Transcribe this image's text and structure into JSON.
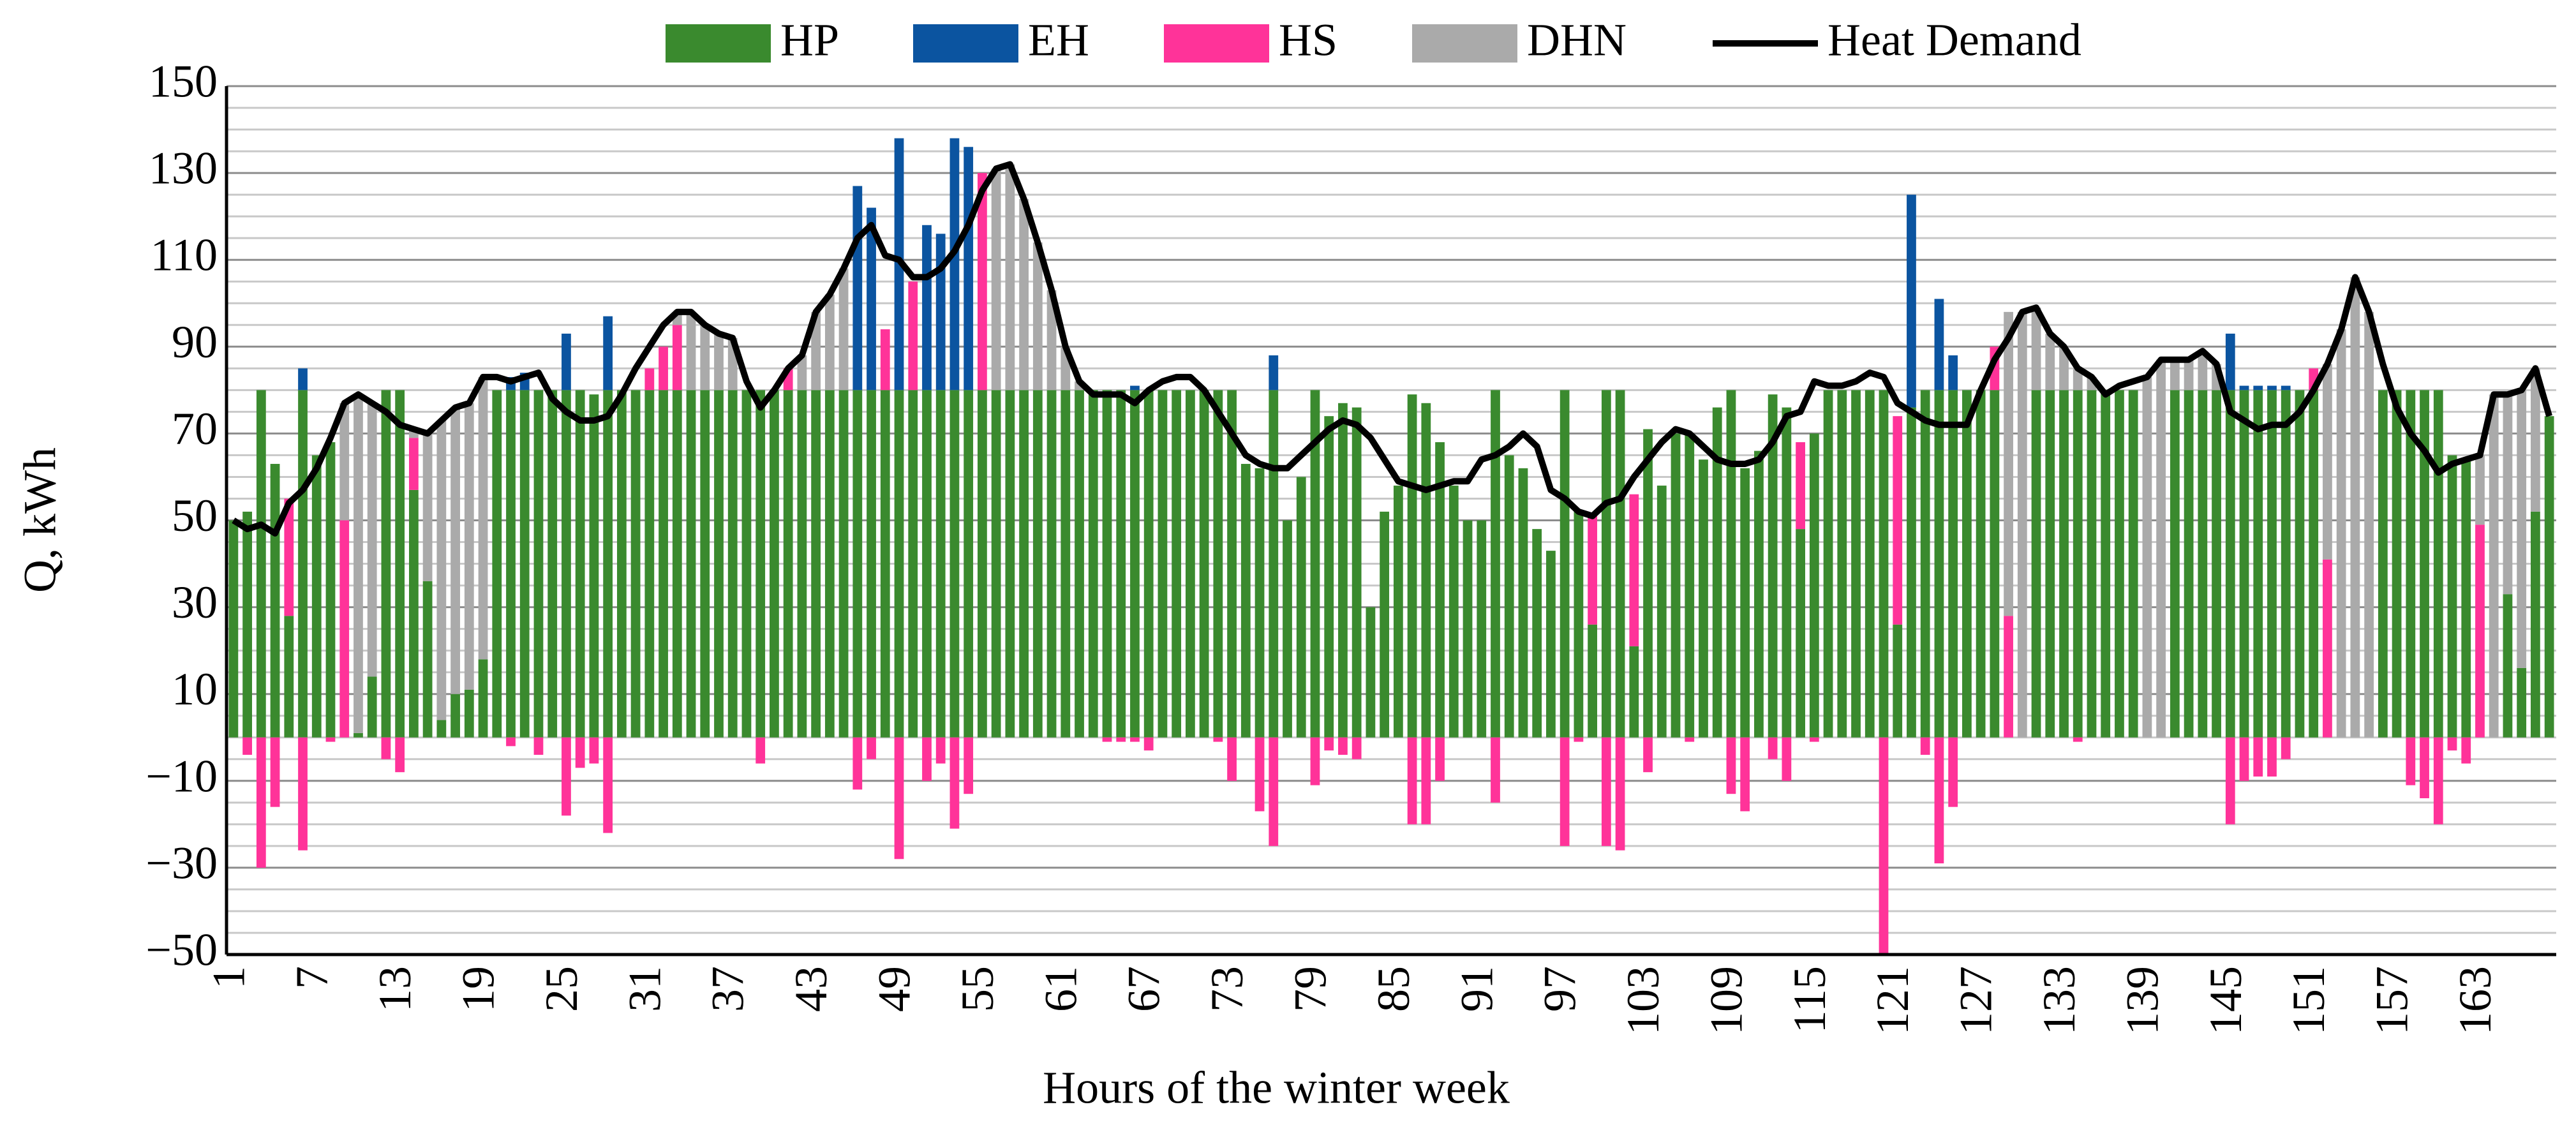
{
  "chart_data": {
    "type": "bar",
    "stacked": true,
    "xlabel": "Hours of the winter week",
    "ylabel": "Q, kWh",
    "legend": "top",
    "grid": true,
    "ylim": [
      -50,
      150
    ],
    "yticks": [
      {
        "value": -50,
        "label": "−50"
      },
      {
        "value": -30,
        "label": "−30"
      },
      {
        "value": -10,
        "label": "−10"
      },
      10,
      30,
      50,
      70,
      90,
      110,
      130,
      150
    ],
    "y_minor_ticks": [
      -45,
      -40,
      -35,
      -25,
      -20,
      -15,
      -5,
      0,
      5,
      15,
      20,
      25,
      35,
      40,
      45,
      55,
      60,
      65,
      75,
      80,
      85,
      95,
      100,
      105,
      115,
      120,
      125,
      135,
      140,
      145
    ],
    "categories": [
      1,
      null,
      null,
      null,
      null,
      null,
      7,
      null,
      null,
      null,
      null,
      null,
      13,
      null,
      null,
      null,
      null,
      null,
      19,
      null,
      null,
      null,
      null,
      null,
      25,
      null,
      null,
      null,
      null,
      null,
      31,
      null,
      null,
      null,
      null,
      null,
      37,
      null,
      null,
      null,
      null,
      null,
      43,
      null,
      null,
      null,
      null,
      null,
      49,
      null,
      null,
      null,
      null,
      null,
      55,
      null,
      null,
      null,
      null,
      null,
      61,
      null,
      null,
      null,
      null,
      null,
      67,
      null,
      null,
      null,
      null,
      null,
      73,
      null,
      null,
      null,
      null,
      null,
      79,
      null,
      null,
      null,
      null,
      null,
      85,
      null,
      null,
      null,
      null,
      null,
      91,
      null,
      null,
      null,
      null,
      null,
      97,
      null,
      null,
      null,
      null,
      null,
      103,
      null,
      null,
      null,
      null,
      null,
      109,
      null,
      null,
      null,
      null,
      null,
      115,
      null,
      null,
      null,
      null,
      null,
      121,
      null,
      null,
      null,
      null,
      null,
      127,
      null,
      null,
      null,
      null,
      null,
      133,
      null,
      null,
      null,
      null,
      null,
      139,
      null,
      null,
      null,
      null,
      null,
      145,
      null,
      null,
      null,
      null,
      null,
      151,
      null,
      null,
      null,
      null,
      null,
      157,
      null,
      null,
      null,
      null,
      null,
      163,
      null,
      null,
      null,
      null,
      null
    ],
    "series": [
      {
        "name": "HP",
        "color": "#3a8a2e",
        "values": [
          50,
          52,
          80,
          63,
          28,
          80,
          65,
          68,
          0,
          1,
          14,
          80,
          80,
          57,
          36,
          4,
          10,
          11,
          18,
          80,
          80,
          80,
          80,
          80,
          80,
          80,
          79,
          80,
          80,
          80,
          80,
          80,
          80,
          80,
          80,
          80,
          80,
          80,
          80,
          80,
          80,
          80,
          80,
          80,
          80,
          80,
          80,
          80,
          80,
          80,
          80,
          80,
          80,
          80,
          80,
          80,
          80,
          80,
          80,
          80,
          80,
          80,
          80,
          80,
          80,
          80,
          80,
          80,
          80,
          80,
          80,
          80,
          80,
          63,
          62,
          80,
          50,
          60,
          80,
          74,
          77,
          76,
          30,
          52,
          58,
          79,
          77,
          68,
          58,
          50,
          50,
          80,
          65,
          62,
          48,
          43,
          80,
          52,
          26,
          80,
          80,
          21,
          71,
          58,
          70,
          70,
          64,
          76,
          80,
          62,
          66,
          79,
          76,
          48,
          70,
          80,
          80,
          80,
          80,
          80,
          26,
          76,
          80,
          80,
          80,
          80,
          80,
          80,
          0,
          0,
          80,
          80,
          80,
          80,
          80,
          80,
          80,
          80,
          0,
          0,
          80,
          80,
          80,
          80,
          80,
          80,
          80,
          80,
          80,
          80,
          80,
          0,
          0,
          0,
          0,
          80,
          80,
          80,
          80,
          80,
          65,
          64,
          0,
          0,
          33,
          16,
          52,
          74
        ]
      },
      {
        "name": "EH",
        "color": "#0b54a0",
        "values": [
          0,
          0,
          0,
          0,
          0,
          5,
          0,
          0,
          0,
          0,
          0,
          0,
          0,
          0,
          0,
          0,
          0,
          0,
          0,
          0,
          3,
          4,
          0,
          0,
          13,
          0,
          0,
          17,
          0,
          0,
          0,
          0,
          0,
          0,
          0,
          0,
          0,
          0,
          0,
          0,
          0,
          0,
          0,
          0,
          0,
          47,
          42,
          0,
          58,
          0,
          38,
          36,
          58,
          56,
          0,
          0,
          0,
          0,
          0,
          0,
          0,
          0,
          0,
          0,
          0,
          1,
          0,
          0,
          0,
          0,
          0,
          0,
          0,
          0,
          0,
          8,
          0,
          0,
          0,
          0,
          0,
          0,
          0,
          0,
          0,
          0,
          0,
          0,
          0,
          0,
          0,
          0,
          0,
          0,
          0,
          0,
          0,
          0,
          0,
          0,
          0,
          0,
          0,
          0,
          0,
          0,
          0,
          0,
          0,
          0,
          0,
          0,
          0,
          0,
          0,
          0,
          0,
          0,
          0,
          0,
          0,
          49,
          0,
          21,
          8,
          0,
          0,
          0,
          0,
          0,
          0,
          0,
          0,
          0,
          0,
          0,
          0,
          0,
          0,
          0,
          0,
          0,
          0,
          0,
          13,
          1,
          1,
          1,
          1,
          0,
          0,
          0,
          0,
          0,
          0,
          0,
          0,
          0,
          0,
          0,
          0,
          0,
          0,
          0,
          0,
          0,
          0,
          0
        ]
      },
      {
        "name": "HS",
        "color": "#ff3399",
        "values": [
          0,
          -4,
          -30,
          -16,
          27,
          -26,
          0,
          -1,
          50,
          0,
          0,
          -5,
          -8,
          12,
          0,
          0,
          0,
          0,
          0,
          0,
          -2,
          0,
          -4,
          0,
          -18,
          -7,
          -6,
          -22,
          0,
          0,
          5,
          10,
          15,
          0,
          0,
          0,
          0,
          0,
          -6,
          0,
          5,
          0,
          0,
          0,
          0,
          -12,
          -5,
          14,
          -28,
          25,
          -10,
          -6,
          -21,
          -13,
          50,
          0,
          0,
          0,
          0,
          0,
          0,
          0,
          0,
          -1,
          -1,
          -1,
          -3,
          0,
          0,
          0,
          0,
          -1,
          -10,
          0,
          -17,
          -25,
          0,
          0,
          -11,
          -3,
          -4,
          -5,
          0,
          0,
          0,
          -20,
          -20,
          -10,
          0,
          0,
          0,
          -15,
          0,
          0,
          0,
          0,
          -25,
          -1,
          25,
          -25,
          -26,
          35,
          -8,
          0,
          0,
          -1,
          0,
          0,
          -13,
          -17,
          0,
          -5,
          -10,
          20,
          -1,
          0,
          0,
          0,
          0,
          -50,
          48,
          0,
          -4,
          -29,
          -16,
          0,
          0,
          10,
          28,
          0,
          0,
          0,
          0,
          -1,
          0,
          0,
          0,
          0,
          0,
          0,
          0,
          0,
          0,
          0,
          -20,
          -10,
          -9,
          -9,
          -5,
          0,
          5,
          41,
          0,
          0,
          0,
          0,
          0,
          -11,
          -14,
          -20,
          -3,
          -6,
          49,
          0,
          0,
          0,
          0,
          0
        ]
      },
      {
        "name": "DHN",
        "color": "#aaaaaa",
        "values": [
          0,
          0,
          0,
          0,
          0,
          0,
          0,
          0,
          27,
          78,
          63,
          0,
          0,
          2,
          34,
          69,
          66,
          66,
          65,
          0,
          0,
          0,
          0,
          0,
          0,
          0,
          0,
          0,
          0,
          0,
          0,
          0,
          3,
          18,
          15,
          13,
          12,
          0,
          0,
          0,
          0,
          8,
          18,
          22,
          28,
          0,
          0,
          0,
          0,
          0,
          0,
          0,
          0,
          0,
          0,
          51,
          52,
          44,
          34,
          23,
          10,
          2,
          0,
          0,
          0,
          0,
          0,
          0,
          0,
          0,
          0,
          0,
          0,
          0,
          0,
          0,
          0,
          0,
          0,
          0,
          0,
          0,
          0,
          0,
          0,
          0,
          0,
          0,
          0,
          0,
          0,
          0,
          0,
          0,
          0,
          0,
          0,
          0,
          0,
          0,
          0,
          0,
          0,
          0,
          0,
          0,
          0,
          0,
          0,
          0,
          0,
          0,
          0,
          0,
          0,
          0,
          0,
          0,
          0,
          0,
          0,
          0,
          0,
          0,
          0,
          0,
          0,
          0,
          70,
          98,
          19,
          13,
          10,
          5,
          3,
          0,
          0,
          0,
          83,
          87,
          7,
          7,
          9,
          6,
          0,
          0,
          0,
          0,
          0,
          0,
          0,
          45,
          94,
          106,
          98,
          0,
          0,
          0,
          0,
          0,
          0,
          0,
          16,
          79,
          46,
          64,
          33,
          0
        ]
      },
      {
        "name": "Heat Demand",
        "type": "line",
        "color": "#000000",
        "values": [
          50,
          48,
          49,
          47,
          54,
          57,
          62,
          69,
          77,
          79,
          77,
          75,
          72,
          71,
          70,
          73,
          76,
          77,
          83,
          83,
          82,
          83,
          84,
          78,
          75,
          73,
          73,
          74,
          79,
          85,
          90,
          95,
          98,
          98,
          95,
          93,
          92,
          82,
          76,
          80,
          85,
          88,
          98,
          102,
          108,
          115,
          118,
          111,
          110,
          106,
          106,
          108,
          112,
          118,
          126,
          131,
          132,
          124,
          114,
          103,
          90,
          82,
          79,
          79,
          79,
          77,
          80,
          82,
          83,
          83,
          80,
          75,
          70,
          65,
          63,
          62,
          62,
          65,
          68,
          71,
          73,
          72,
          69,
          64,
          59,
          58,
          57,
          58,
          59,
          59,
          64,
          65,
          67,
          70,
          67,
          57,
          55,
          52,
          51,
          54,
          55,
          60,
          64,
          68,
          71,
          70,
          67,
          64,
          63,
          63,
          64,
          68,
          74,
          75,
          82,
          81,
          81,
          82,
          84,
          83,
          77,
          75,
          73,
          72,
          72,
          72,
          80,
          87,
          92,
          98,
          99,
          93,
          90,
          85,
          83,
          79,
          81,
          82,
          83,
          87,
          87,
          87,
          89,
          86,
          75,
          73,
          71,
          72,
          72,
          75,
          80,
          86,
          94,
          106,
          98,
          86,
          76,
          70,
          66,
          61,
          63,
          64,
          65,
          79,
          79,
          80,
          85,
          74
        ]
      }
    ]
  }
}
